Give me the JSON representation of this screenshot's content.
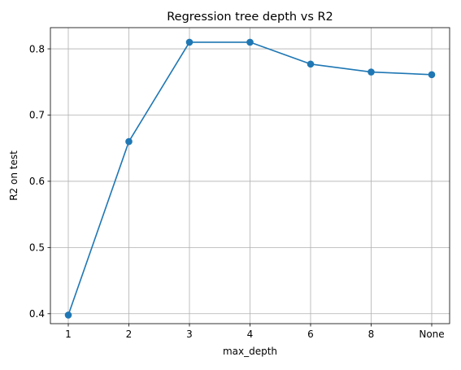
{
  "chart_data": {
    "type": "line",
    "title": "Regression tree depth vs R2",
    "xlabel": "max_depth",
    "ylabel": "R2 on test",
    "categories": [
      "1",
      "2",
      "3",
      "4",
      "6",
      "8",
      "None"
    ],
    "series": [
      {
        "values": [
          0.398,
          0.66,
          0.81,
          0.81,
          0.777,
          0.765,
          0.761
        ]
      }
    ],
    "ylim": [
      0.385,
      0.832
    ],
    "yticks": [
      0.4,
      0.5,
      0.6,
      0.7,
      0.8
    ],
    "ytick_labels": [
      "0.4",
      "0.5",
      "0.6",
      "0.7",
      "0.8"
    ],
    "grid": true,
    "markers": true,
    "line_color": "#1f77b4",
    "grid_color": "#b0b0b0"
  }
}
